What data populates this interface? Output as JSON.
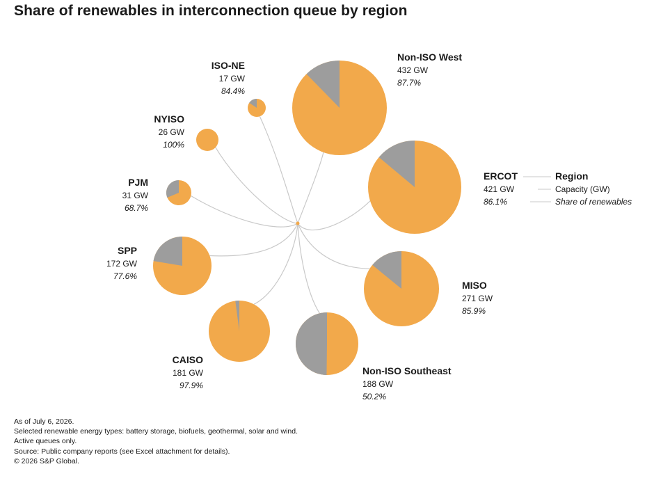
{
  "title": "Share of renewables in interconnection queue by region",
  "colors": {
    "renewable": "#f2a94b",
    "other": "#9d9d9d",
    "connector": "#c9c9c9",
    "hub": "#f2a94b"
  },
  "chart_data": {
    "type": "pie",
    "title": "Share of renewables in interconnection queue by region",
    "series": [
      {
        "name": "ISO-NE",
        "capacity_gw": 17,
        "capacity_label": "17 GW",
        "renewable_share": 84.4,
        "share_label": "84.4%"
      },
      {
        "name": "Non-ISO West",
        "capacity_gw": 432,
        "capacity_label": "432 GW",
        "renewable_share": 87.7,
        "share_label": "87.7%"
      },
      {
        "name": "NYISO",
        "capacity_gw": 26,
        "capacity_label": "26 GW",
        "renewable_share": 100,
        "share_label": "100%"
      },
      {
        "name": "ERCOT",
        "capacity_gw": 421,
        "capacity_label": "421 GW",
        "renewable_share": 86.1,
        "share_label": "86.1%"
      },
      {
        "name": "PJM",
        "capacity_gw": 31,
        "capacity_label": "31 GW",
        "renewable_share": 68.7,
        "share_label": "68.7%"
      },
      {
        "name": "SPP",
        "capacity_gw": 172,
        "capacity_label": "172 GW",
        "renewable_share": 77.6,
        "share_label": "77.6%"
      },
      {
        "name": "MISO",
        "capacity_gw": 271,
        "capacity_label": "271 GW",
        "renewable_share": 85.9,
        "share_label": "85.9%"
      },
      {
        "name": "CAISO",
        "capacity_gw": 181,
        "capacity_label": "181 GW",
        "renewable_share": 97.9,
        "share_label": "97.9%"
      },
      {
        "name": "Non-ISO Southeast",
        "capacity_gw": 188,
        "capacity_label": "188 GW",
        "renewable_share": 50.2,
        "share_label": "50.2%"
      }
    ],
    "legend": {
      "placement": "right",
      "items": [
        "Region",
        "Capacity (GW)",
        "Share of renewables"
      ]
    }
  },
  "footnotes": [
    "As of July 6, 2026.",
    "Selected renewable energy types: battery storage, biofuels, geothermal, solar and wind.",
    "Active queues only.",
    "Source: Public company reports (see Excel attachment for details).",
    "© 2026 S&P Global."
  ]
}
